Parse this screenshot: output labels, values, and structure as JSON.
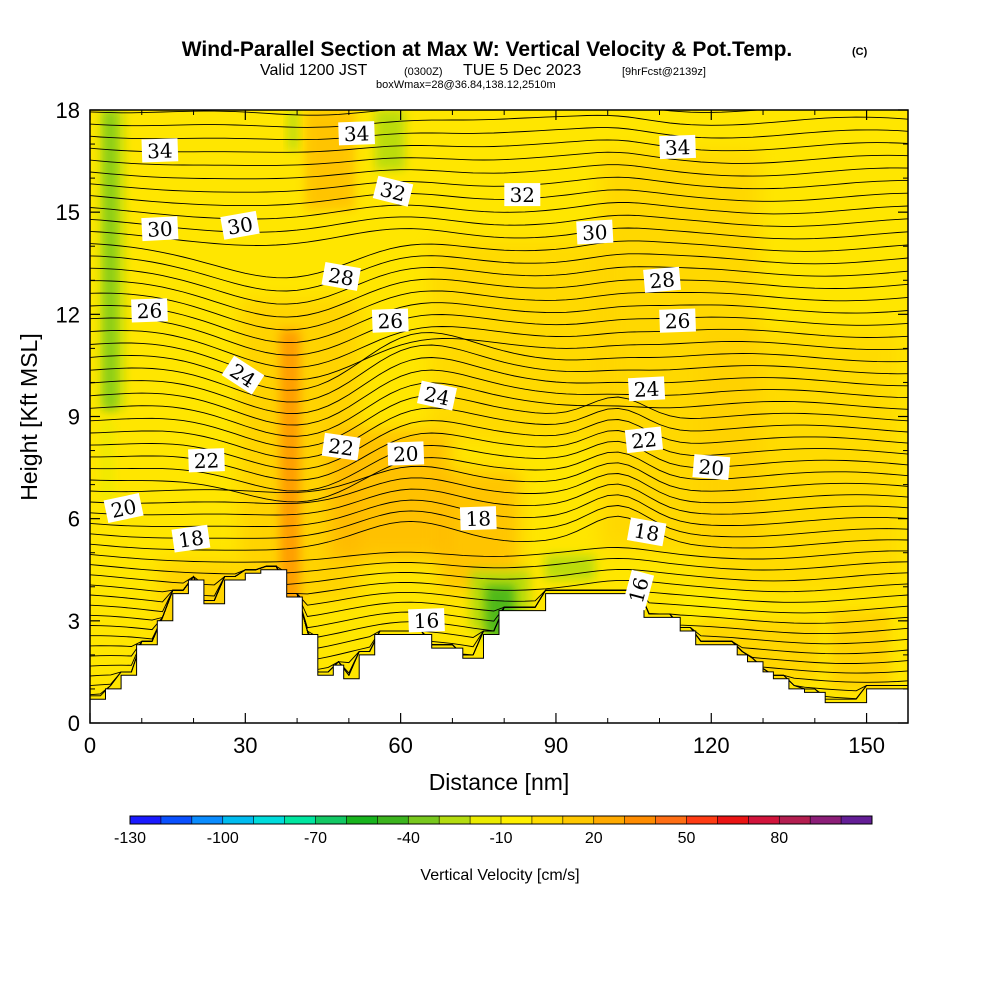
{
  "chart_data": {
    "type": "heatmap",
    "title": "Wind-Parallel Section at Max W: Vertical Velocity & Pot.Temp.",
    "title_mark": "(C)",
    "subtitle": {
      "valid_prefix": "Valid 1200 JST",
      "utc": "(0300Z)",
      "date": "TUE 5 Dec 2023",
      "forecast": "[9hrFcst@2139z]",
      "box": "boxWmax=28@36.84,138.12,2510m"
    },
    "xlabel": "Distance [nm]",
    "ylabel": "Height [Kft MSL]",
    "xlim": [
      0,
      158
    ],
    "ylim": [
      0,
      18
    ],
    "xticks": [
      0,
      30,
      60,
      90,
      120,
      150
    ],
    "yticks": [
      0,
      3,
      6,
      9,
      12,
      15,
      18
    ],
    "colorbar": {
      "label": "Vertical Velocity [cm/s]",
      "tick_labels": [
        "-130",
        "-100",
        "-70",
        "-40",
        "-10",
        "20",
        "50",
        "80"
      ],
      "colors": [
        "#1a1aff",
        "#0a50ff",
        "#0a8cff",
        "#00bcf0",
        "#00dcdc",
        "#00e6a0",
        "#12c864",
        "#18b41e",
        "#3cb41e",
        "#78c81e",
        "#b4dc10",
        "#ebeb00",
        "#fff000",
        "#ffdc00",
        "#ffc800",
        "#ffaa00",
        "#ff8c00",
        "#ff6e14",
        "#ff3c14",
        "#eb1414",
        "#d2143c",
        "#b41e50",
        "#8c1e78",
        "#641e96"
      ]
    },
    "background_color": "#ffe600",
    "theta_contour_labels": [
      {
        "text": "34",
        "x": 13.5,
        "y": 16.8,
        "angle": -2
      },
      {
        "text": "34",
        "x": 51.5,
        "y": 17.3,
        "angle": -2
      },
      {
        "text": "34",
        "x": 113.5,
        "y": 16.9,
        "angle": -2
      },
      {
        "text": "32",
        "x": 58.5,
        "y": 15.6,
        "angle": 14
      },
      {
        "text": "32",
        "x": 83.5,
        "y": 15.5,
        "angle": 0
      },
      {
        "text": "30",
        "x": 13.5,
        "y": 14.5,
        "angle": -3
      },
      {
        "text": "30",
        "x": 29,
        "y": 14.6,
        "angle": -10
      },
      {
        "text": "30",
        "x": 97.5,
        "y": 14.4,
        "angle": -3
      },
      {
        "text": "28",
        "x": 48.5,
        "y": 13.1,
        "angle": 10
      },
      {
        "text": "28",
        "x": 110.5,
        "y": 13.0,
        "angle": -5
      },
      {
        "text": "26",
        "x": 11.5,
        "y": 12.1,
        "angle": -2
      },
      {
        "text": "26",
        "x": 58,
        "y": 11.8,
        "angle": -2
      },
      {
        "text": "26",
        "x": 113.5,
        "y": 11.8,
        "angle": -2
      },
      {
        "text": "24",
        "x": 29.5,
        "y": 10.2,
        "angle": 33
      },
      {
        "text": "24",
        "x": 67,
        "y": 9.6,
        "angle": 12
      },
      {
        "text": "24",
        "x": 107.5,
        "y": 9.8,
        "angle": -3
      },
      {
        "text": "22",
        "x": 22.5,
        "y": 7.7,
        "angle": -2
      },
      {
        "text": "22",
        "x": 48.5,
        "y": 8.1,
        "angle": 8
      },
      {
        "text": "22",
        "x": 107,
        "y": 8.3,
        "angle": -6
      },
      {
        "text": "20",
        "x": 6.5,
        "y": 6.3,
        "angle": -12
      },
      {
        "text": "20",
        "x": 61,
        "y": 7.9,
        "angle": -2
      },
      {
        "text": "20",
        "x": 120,
        "y": 7.5,
        "angle": 5
      },
      {
        "text": "18",
        "x": 19.5,
        "y": 5.4,
        "angle": -8
      },
      {
        "text": "18",
        "x": 75,
        "y": 6.0,
        "angle": -2
      },
      {
        "text": "18",
        "x": 107.5,
        "y": 5.6,
        "angle": 10
      },
      {
        "text": "16",
        "x": 65,
        "y": 3.0,
        "angle": -2
      },
      {
        "text": "16",
        "x": 106,
        "y": 3.9,
        "angle": -75
      }
    ],
    "terrain": {
      "x": [
        0,
        3,
        3,
        6,
        6,
        9,
        9,
        13,
        13,
        16,
        16,
        19,
        19,
        22,
        22,
        26,
        26,
        30,
        30,
        33,
        33,
        38,
        38,
        41,
        41,
        44,
        44,
        47,
        47,
        49,
        49,
        52,
        52,
        55,
        55,
        57,
        57,
        66,
        66,
        72,
        72,
        76,
        76,
        79,
        79,
        88,
        88,
        107,
        107,
        114,
        114,
        117,
        117,
        125,
        125,
        127,
        127,
        130,
        130,
        132,
        132,
        135,
        135,
        138,
        138,
        142,
        142,
        146,
        146,
        150,
        150,
        158
      ],
      "y": [
        0.7,
        0.7,
        1.0,
        1.0,
        1.4,
        1.4,
        2.3,
        2.3,
        3.0,
        3.0,
        3.8,
        3.8,
        4.2,
        4.2,
        3.5,
        3.5,
        4.2,
        4.2,
        4.4,
        4.4,
        4.5,
        4.5,
        3.7,
        3.7,
        2.6,
        2.6,
        1.4,
        1.4,
        1.7,
        1.7,
        1.3,
        1.3,
        2.0,
        2.0,
        2.6,
        2.6,
        2.6,
        2.6,
        2.2,
        2.2,
        1.9,
        1.9,
        2.6,
        2.6,
        3.3,
        3.3,
        3.8,
        3.8,
        3.1,
        3.1,
        2.7,
        2.7,
        2.3,
        2.3,
        2.0,
        2.0,
        1.8,
        1.8,
        1.5,
        1.5,
        1.3,
        1.3,
        1.0,
        1.0,
        0.9,
        0.9,
        0.6,
        0.6,
        0.6,
        0.6,
        1.0,
        1.0
      ]
    }
  }
}
